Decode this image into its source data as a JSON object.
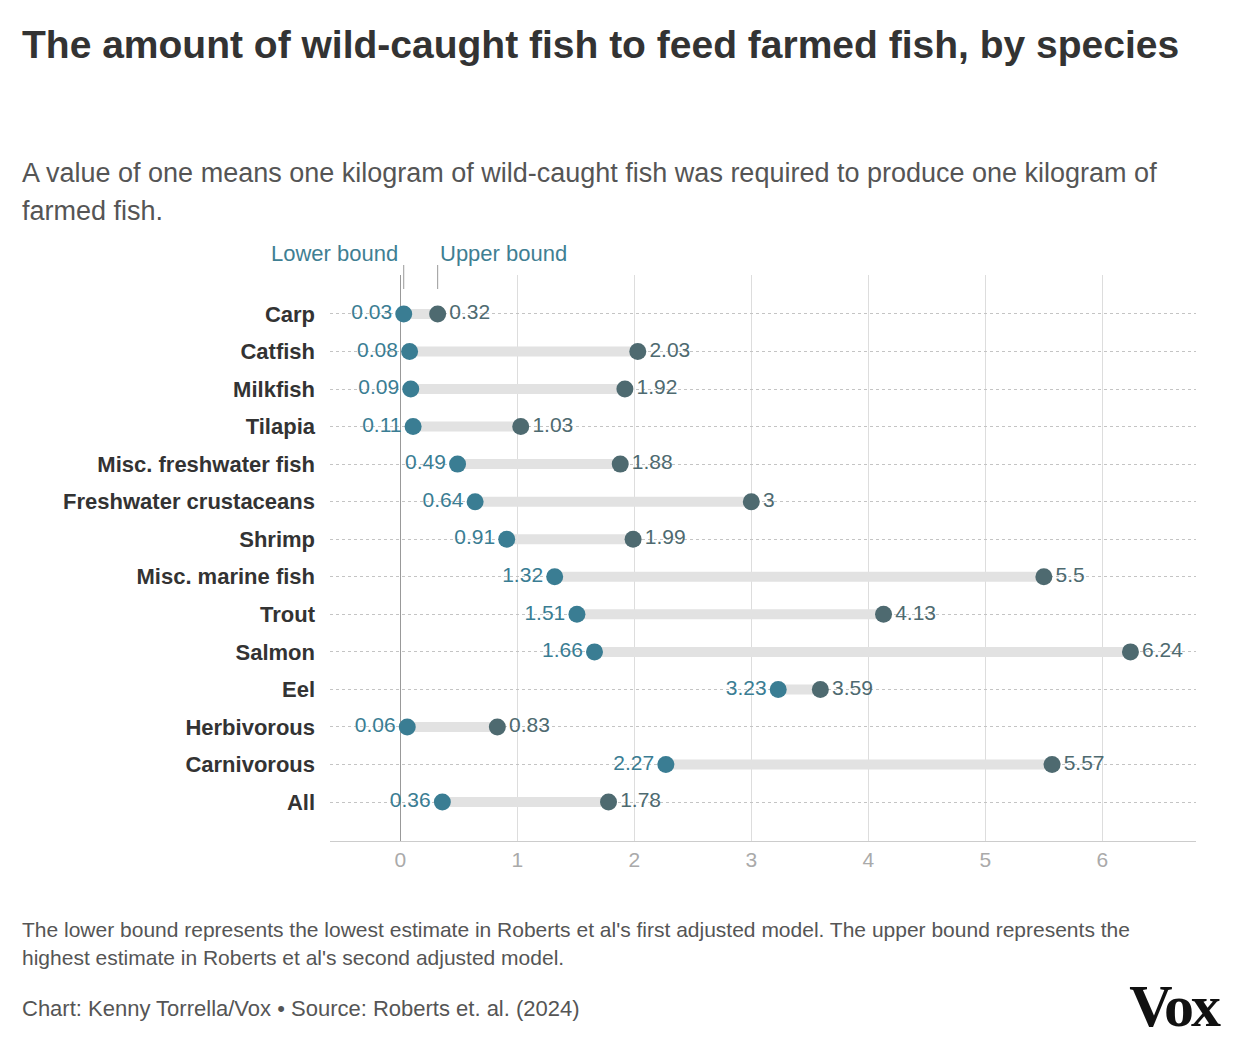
{
  "chart_data": {
    "type": "dumbbell",
    "title": "The amount of wild-caught fish to feed farmed fish, by species",
    "subtitle": "A value of one means one kilogram of wild-caught fish was required to produce one kilogram of farmed fish.",
    "note": "The lower bound represents the lowest estimate in Roberts et al's first adjusted model. The upper bound represents the highest estimate in Roberts et al's second adjusted model.",
    "source": "Chart: Kenny Torrella/Vox • Source: Roberts et. al. (2024)",
    "logo": "Vox",
    "orientation": "horizontal",
    "categories": [
      "Carp",
      "Catfish",
      "Milkfish",
      "Tilapia",
      "Misc. freshwater fish",
      "Freshwater crustaceans",
      "Shrimp",
      "Misc. marine fish",
      "Trout",
      "Salmon",
      "Eel",
      "Herbivorous",
      "Carnivorous",
      "All"
    ],
    "series": [
      {
        "name": "Lower bound",
        "color": "#3a7d93",
        "values": [
          0.03,
          0.08,
          0.09,
          0.11,
          0.49,
          0.64,
          0.91,
          1.32,
          1.51,
          1.66,
          3.23,
          0.06,
          2.27,
          0.36
        ]
      },
      {
        "name": "Upper bound",
        "color": "#4e6a70",
        "values": [
          0.32,
          2.03,
          1.92,
          1.03,
          1.88,
          3,
          1.99,
          5.5,
          4.13,
          6.24,
          3.59,
          0.83,
          5.57,
          1.78
        ]
      }
    ],
    "xlim": [
      -0.6,
      6.8
    ],
    "xticks": [
      0,
      1,
      2,
      3,
      4,
      5,
      6
    ],
    "grid": true,
    "data_labels": true
  }
}
